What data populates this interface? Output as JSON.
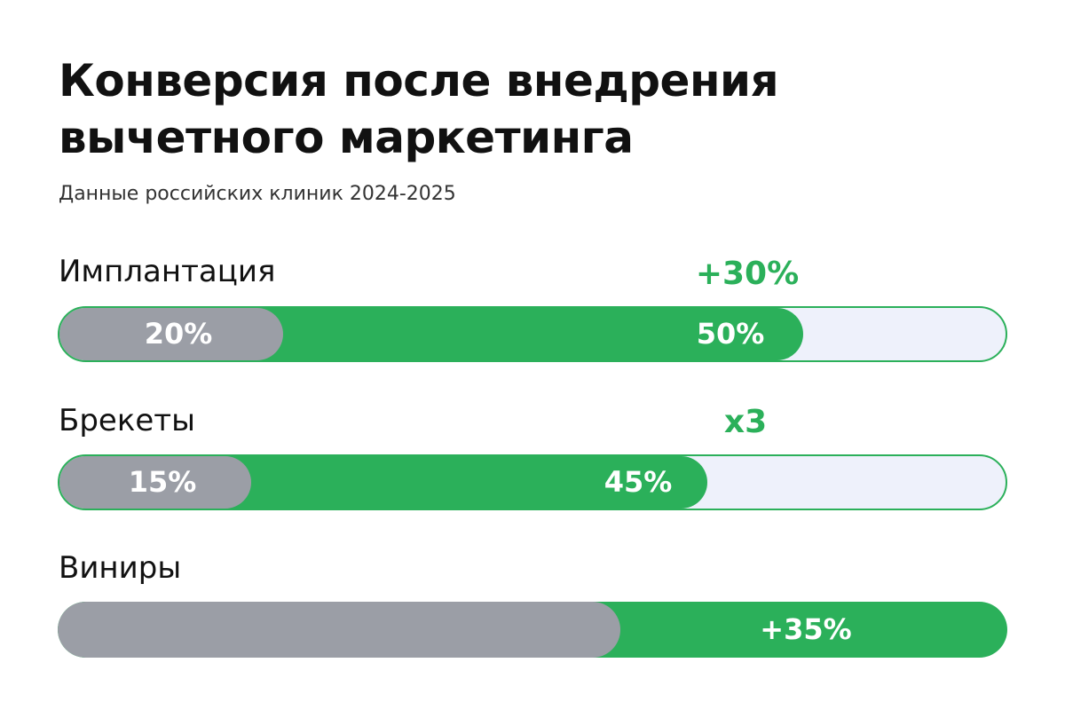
{
  "header": {
    "title": [
      "Конверсия после внедрения",
      "вычетного маркетинга"
    ],
    "subtitle": "Данные российских клиник 2024-2025"
  },
  "rows": [
    {
      "label": "Имплантация",
      "before": "20%",
      "after": "50%",
      "change": "+30%"
    },
    {
      "label": "Брекеты",
      "before": "15%",
      "after": "45%",
      "change": "x3"
    },
    {
      "label": "Виниры",
      "change": "+35%"
    }
  ]
}
